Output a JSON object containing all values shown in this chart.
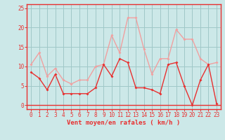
{
  "x": [
    0,
    1,
    2,
    3,
    4,
    5,
    6,
    7,
    8,
    9,
    10,
    11,
    12,
    13,
    14,
    15,
    16,
    17,
    18,
    19,
    20,
    21,
    22,
    23
  ],
  "vent_moyen": [
    8.5,
    7,
    4,
    8,
    3,
    3,
    3,
    3,
    4.5,
    10.5,
    7.5,
    12,
    11,
    4.5,
    4.5,
    4,
    3,
    10.5,
    11,
    5,
    0,
    6.5,
    10.5,
    0.5
  ],
  "rafales": [
    10.5,
    13.5,
    7.5,
    9.5,
    6.5,
    5.5,
    6.5,
    6.5,
    10,
    10.5,
    18,
    13.5,
    22.5,
    22.5,
    14.5,
    8,
    12,
    12,
    19.5,
    17,
    17,
    12,
    10.5,
    11
  ],
  "color_moyen": "#e83030",
  "color_rafales": "#f0a0a0",
  "bg_color": "#cce8e8",
  "grid_color": "#a0c8c8",
  "xlabel": "Vent moyen/en rafales ( km/h )",
  "ylabel_ticks": [
    0,
    5,
    10,
    15,
    20,
    25
  ],
  "ylim": [
    -1,
    26
  ],
  "xlim": [
    -0.5,
    23.5
  ],
  "tick_fontsize": 5.5,
  "xlabel_fontsize": 6.5
}
